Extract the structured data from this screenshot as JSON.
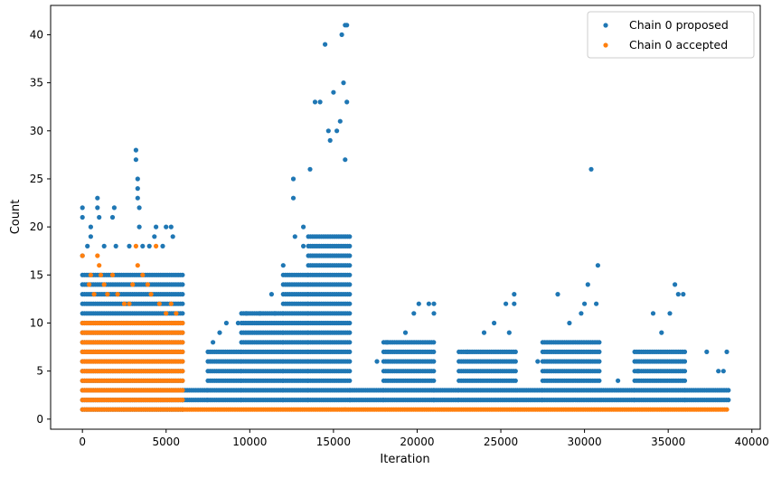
{
  "chart_data": {
    "type": "scatter",
    "xlabel": "Iteration",
    "ylabel": "Count",
    "xlim": [
      -1900,
      40500
    ],
    "ylim": [
      -1.05,
      43.05
    ],
    "xticks": [
      0,
      5000,
      10000,
      15000,
      20000,
      25000,
      30000,
      35000,
      40000
    ],
    "xtick_labels": [
      "0",
      "5000",
      "10000",
      "15000",
      "20000",
      "25000",
      "30000",
      "35000",
      "40000"
    ],
    "yticks": [
      0,
      5,
      10,
      15,
      20,
      25,
      30,
      35,
      40
    ],
    "ytick_labels": [
      "0",
      "5",
      "10",
      "15",
      "20",
      "25",
      "30",
      "35",
      "40"
    ],
    "grid": false,
    "legend_position": "top-right",
    "legend": [
      "Chain 0 proposed",
      "Chain 0 accepted"
    ],
    "series": [
      {
        "name": "Chain 0 proposed",
        "color": "#1f77b4",
        "segments": [
          {
            "x_start": 0,
            "x_end": 6000,
            "y_min": 1,
            "y_max": 15
          },
          {
            "x_start": 6000,
            "x_end": 7500,
            "y_min": 2,
            "y_max": 3
          },
          {
            "x_start": 7500,
            "x_end": 9500,
            "y_min": 2,
            "y_max": 7
          },
          {
            "x_start": 9500,
            "x_end": 12000,
            "y_min": 2,
            "y_max": 11
          },
          {
            "x_start": 12000,
            "x_end": 13500,
            "y_min": 2,
            "y_max": 15
          },
          {
            "x_start": 13500,
            "x_end": 16000,
            "y_min": 2,
            "y_max": 19
          },
          {
            "x_start": 16000,
            "x_end": 18000,
            "y_min": 2,
            "y_max": 3
          },
          {
            "x_start": 18000,
            "x_end": 21000,
            "y_min": 2,
            "y_max": 8
          },
          {
            "x_start": 21000,
            "x_end": 22500,
            "y_min": 2,
            "y_max": 3
          },
          {
            "x_start": 22500,
            "x_end": 26000,
            "y_min": 2,
            "y_max": 7
          },
          {
            "x_start": 26000,
            "x_end": 27500,
            "y_min": 2,
            "y_max": 3
          },
          {
            "x_start": 27500,
            "x_end": 31000,
            "y_min": 2,
            "y_max": 8
          },
          {
            "x_start": 31000,
            "x_end": 33000,
            "y_min": 2,
            "y_max": 3
          },
          {
            "x_start": 33000,
            "x_end": 36000,
            "y_min": 2,
            "y_max": 7
          },
          {
            "x_start": 36000,
            "x_end": 38600,
            "y_min": 2,
            "y_max": 3
          }
        ],
        "points": [
          [
            0,
            21
          ],
          [
            0,
            22
          ],
          [
            0,
            17
          ],
          [
            300,
            18
          ],
          [
            500,
            19
          ],
          [
            500,
            20
          ],
          [
            900,
            23
          ],
          [
            900,
            22
          ],
          [
            1000,
            21
          ],
          [
            1300,
            18
          ],
          [
            1800,
            21
          ],
          [
            1900,
            22
          ],
          [
            2000,
            18
          ],
          [
            2800,
            18
          ],
          [
            3200,
            28
          ],
          [
            3200,
            27
          ],
          [
            3300,
            25
          ],
          [
            3300,
            24
          ],
          [
            3300,
            23
          ],
          [
            3400,
            22
          ],
          [
            3400,
            20
          ],
          [
            3600,
            18
          ],
          [
            4000,
            18
          ],
          [
            4300,
            19
          ],
          [
            4400,
            20
          ],
          [
            4800,
            18
          ],
          [
            5000,
            20
          ],
          [
            5300,
            20
          ],
          [
            5400,
            19
          ],
          [
            7800,
            8
          ],
          [
            8200,
            9
          ],
          [
            8600,
            10
          ],
          [
            9300,
            10
          ],
          [
            9800,
            11
          ],
          [
            10600,
            11
          ],
          [
            11300,
            13
          ],
          [
            11500,
            11
          ],
          [
            12000,
            16
          ],
          [
            12600,
            25
          ],
          [
            12600,
            23
          ],
          [
            12700,
            19
          ],
          [
            13200,
            20
          ],
          [
            13200,
            18
          ],
          [
            13600,
            26
          ],
          [
            13900,
            33
          ],
          [
            14200,
            33
          ],
          [
            14500,
            39
          ],
          [
            14700,
            30
          ],
          [
            14800,
            29
          ],
          [
            15000,
            34
          ],
          [
            15200,
            30
          ],
          [
            15400,
            31
          ],
          [
            15500,
            40
          ],
          [
            15600,
            35
          ],
          [
            15700,
            41
          ],
          [
            15800,
            41
          ],
          [
            15800,
            33
          ],
          [
            15700,
            27
          ],
          [
            17600,
            6
          ],
          [
            18200,
            8
          ],
          [
            19300,
            9
          ],
          [
            19800,
            11
          ],
          [
            20100,
            12
          ],
          [
            20700,
            12
          ],
          [
            21000,
            12
          ],
          [
            21000,
            11
          ],
          [
            23000,
            7
          ],
          [
            24000,
            9
          ],
          [
            24600,
            10
          ],
          [
            25300,
            12
          ],
          [
            25500,
            9
          ],
          [
            25800,
            13
          ],
          [
            25800,
            12
          ],
          [
            27200,
            6
          ],
          [
            28400,
            13
          ],
          [
            29100,
            10
          ],
          [
            29800,
            11
          ],
          [
            30000,
            12
          ],
          [
            30200,
            14
          ],
          [
            30400,
            26
          ],
          [
            30700,
            12
          ],
          [
            30800,
            16
          ],
          [
            32000,
            4
          ],
          [
            33200,
            5
          ],
          [
            34100,
            11
          ],
          [
            34600,
            9
          ],
          [
            35100,
            11
          ],
          [
            35400,
            14
          ],
          [
            35600,
            13
          ],
          [
            35900,
            13
          ],
          [
            37300,
            7
          ],
          [
            38000,
            5
          ],
          [
            38300,
            5
          ],
          [
            38500,
            7
          ]
        ]
      },
      {
        "name": "Chain 0 accepted",
        "color": "#ff7f0e",
        "segments": [
          {
            "x_start": 0,
            "x_end": 6000,
            "y_min": 1,
            "y_max": 10
          },
          {
            "x_start": 6000,
            "x_end": 38600,
            "y_min": 1,
            "y_max": 1
          }
        ],
        "points": [
          [
            0,
            17
          ],
          [
            400,
            14
          ],
          [
            500,
            15
          ],
          [
            700,
            13
          ],
          [
            900,
            17
          ],
          [
            1000,
            16
          ],
          [
            1100,
            15
          ],
          [
            1300,
            14
          ],
          [
            1500,
            13
          ],
          [
            1800,
            15
          ],
          [
            2100,
            13
          ],
          [
            2500,
            12
          ],
          [
            2800,
            12
          ],
          [
            3000,
            14
          ],
          [
            3200,
            18
          ],
          [
            3300,
            16
          ],
          [
            3600,
            15
          ],
          [
            3900,
            14
          ],
          [
            4100,
            13
          ],
          [
            4400,
            18
          ],
          [
            4600,
            12
          ],
          [
            5000,
            11
          ],
          [
            5300,
            12
          ],
          [
            5600,
            11
          ]
        ]
      }
    ]
  }
}
